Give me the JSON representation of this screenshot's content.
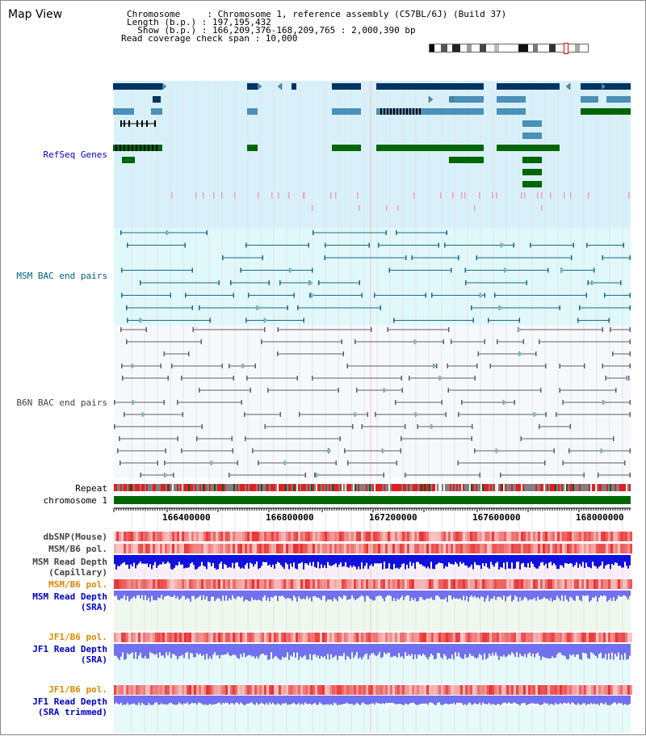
{
  "header": {
    "title": "Map View",
    "info_lines": [
      "Chromosome     : Chromosome 1, reference assembly (C57BL/6J) (Build 37)",
      "Length (b.p.) : 197,195,432",
      "  Show (b.p.) : 166,209,376-168,209,765 : 2,000,390 bp",
      "Read coverage check span : 10,000"
    ]
  },
  "tracks": {
    "refseq": {
      "label": "RefSeq Genes",
      "color": "#0000cc"
    },
    "msm_bac": {
      "label": "MSM BAC end pairs",
      "color": "#006080"
    },
    "b6n_bac": {
      "label": "B6N BAC end pairs",
      "color": "#444444"
    },
    "repeat": {
      "label": "Repeat",
      "color": "#000000"
    },
    "chromosome": {
      "label": "chromosome 1",
      "color": "#000000"
    },
    "dbsnp": {
      "label": "dbSNP(Mouse)",
      "color": "#444444"
    },
    "msm_b6_pol": {
      "label": "MSM/B6 pol.",
      "color": "#444444"
    },
    "msm_read_cap": {
      "label": "MSM Read Depth",
      "sublabel": "(Capillary)",
      "color": "#444444"
    },
    "msm_b6_pol2": {
      "label": "MSM/B6 pol.",
      "color": "#e08800"
    },
    "msm_read_sra": {
      "label": "MSM Read Depth",
      "sublabel": "(SRA)",
      "color": "#0000cc"
    },
    "jf1_b6_pol": {
      "label": "JF1/B6 pol.",
      "color": "#e08800"
    },
    "jf1_read_sra": {
      "label": "JF1 Read Depth",
      "sublabel": "(SRA)",
      "color": "#0000cc"
    },
    "jf1_b6_pol2": {
      "label": "JF1/B6 pol.",
      "color": "#e08800"
    },
    "jf1_read_trim": {
      "label": "JF1 Read Depth",
      "sublabel": "(SRA trimmed)",
      "color": "#0000cc"
    }
  },
  "axis": {
    "ticks": [
      "166400000",
      "166800000",
      "167200000",
      "167600000",
      "168000000"
    ]
  },
  "colors": {
    "refseq_bg": "#d8f0fa",
    "msm_bg": "#e0f8fa",
    "b6n_bg": "#f6f8fc",
    "chrom_bar": "#006600",
    "gene_dark": "#003366",
    "gene_mid": "#4a90b8",
    "gene_green": "#006600",
    "msm_line": "#1a6a8a",
    "b6n_line": "#606060",
    "snp_red": "#e83030",
    "depth_blue": "#1010e0",
    "depth_light": "#7070f0"
  }
}
